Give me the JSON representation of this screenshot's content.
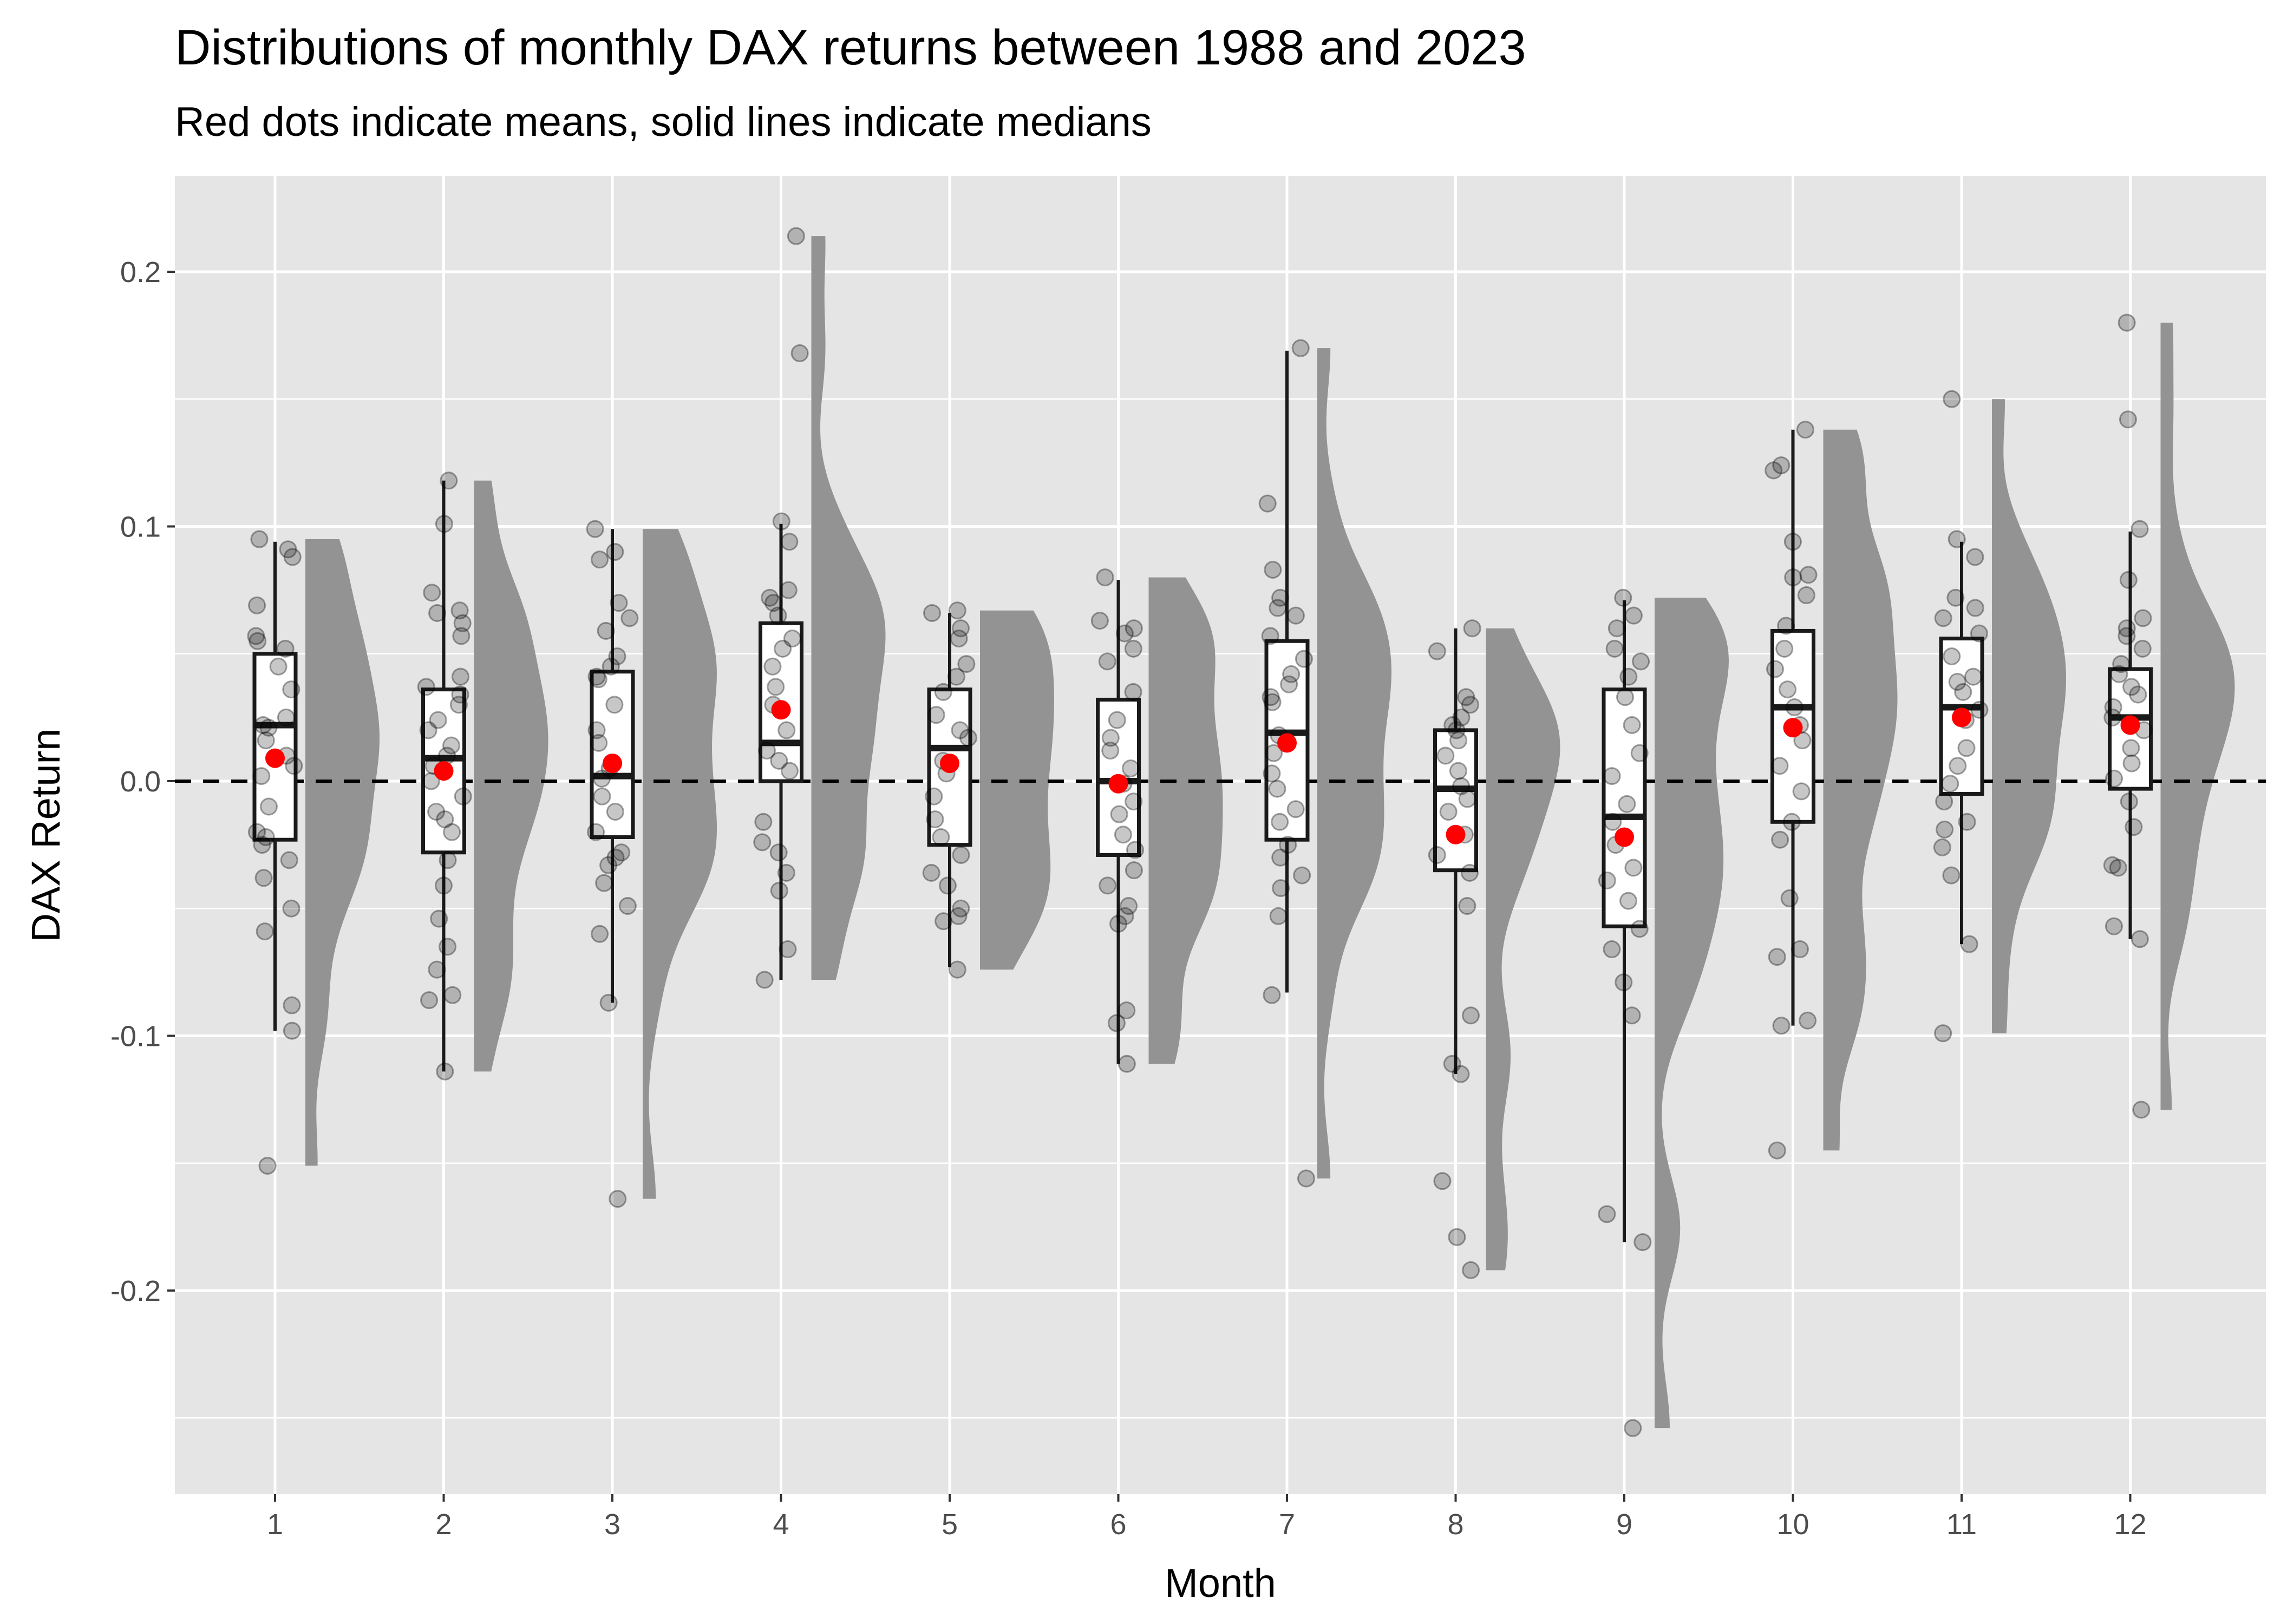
{
  "chart_data": {
    "type": "box",
    "title": "Distributions of monthly DAX returns between 1988 and 2023",
    "subtitle": "Red dots indicate means, solid lines indicate medians",
    "xlabel": "Month",
    "ylabel": "DAX Return",
    "ylim": [
      -0.28,
      0.235
    ],
    "yticks": [
      -0.2,
      -0.1,
      0.0,
      0.1,
      0.2
    ],
    "ytick_labels": [
      "-0.2",
      "-0.1",
      "0.0",
      "0.1",
      "0.2"
    ],
    "reference_line": 0,
    "grid": true,
    "colors": {
      "panel": "#e5e5e5",
      "grid": "#ffffff",
      "mean": "#ff0000",
      "violin": "#939393",
      "point": "#000000"
    },
    "categories": [
      "1",
      "2",
      "3",
      "4",
      "5",
      "6",
      "7",
      "8",
      "9",
      "10",
      "11",
      "12"
    ],
    "boxes": [
      {
        "month": "1",
        "whisker_low": -0.098,
        "q1": -0.023,
        "median": 0.022,
        "q3": 0.05,
        "whisker_high": 0.094,
        "mean": 0.009
      },
      {
        "month": "2",
        "whisker_low": -0.114,
        "q1": -0.028,
        "median": 0.009,
        "q3": 0.036,
        "whisker_high": 0.118,
        "mean": 0.004
      },
      {
        "month": "3",
        "whisker_low": -0.087,
        "q1": -0.022,
        "median": 0.002,
        "q3": 0.043,
        "whisker_high": 0.099,
        "mean": 0.007
      },
      {
        "month": "4",
        "whisker_low": -0.078,
        "q1": 0.0,
        "median": 0.015,
        "q3": 0.062,
        "whisker_high": 0.101,
        "mean": 0.028
      },
      {
        "month": "5",
        "whisker_low": -0.073,
        "q1": -0.025,
        "median": 0.013,
        "q3": 0.036,
        "whisker_high": 0.066,
        "mean": 0.007
      },
      {
        "month": "6",
        "whisker_low": -0.111,
        "q1": -0.029,
        "median": 0.0,
        "q3": 0.032,
        "whisker_high": 0.079,
        "mean": -0.001
      },
      {
        "month": "7",
        "whisker_low": -0.083,
        "q1": -0.023,
        "median": 0.019,
        "q3": 0.055,
        "whisker_high": 0.169,
        "mean": 0.015
      },
      {
        "month": "8",
        "whisker_low": -0.115,
        "q1": -0.035,
        "median": -0.003,
        "q3": 0.02,
        "whisker_high": 0.06,
        "mean": -0.021
      },
      {
        "month": "9",
        "whisker_low": -0.181,
        "q1": -0.057,
        "median": -0.014,
        "q3": 0.036,
        "whisker_high": 0.071,
        "mean": -0.022
      },
      {
        "month": "10",
        "whisker_low": -0.096,
        "q1": -0.016,
        "median": 0.029,
        "q3": 0.059,
        "whisker_high": 0.138,
        "mean": 0.021
      },
      {
        "month": "11",
        "whisker_low": -0.064,
        "q1": -0.005,
        "median": 0.029,
        "q3": 0.056,
        "whisker_high": 0.094,
        "mean": 0.025
      },
      {
        "month": "12",
        "whisker_low": -0.062,
        "q1": -0.003,
        "median": 0.025,
        "q3": 0.044,
        "whisker_high": 0.098,
        "mean": 0.022
      }
    ],
    "observations": {
      "1": [
        0.095,
        0.091,
        0.088,
        0.069,
        0.057,
        0.055,
        0.052,
        0.045,
        0.036,
        0.025,
        0.021,
        0.022,
        0.016,
        0.01,
        0.006,
        0.002,
        -0.01,
        -0.02,
        -0.022,
        -0.025,
        -0.031,
        -0.038,
        -0.05,
        -0.059,
        -0.088,
        -0.098,
        -0.151
      ],
      "2": [
        0.118,
        0.101,
        0.074,
        0.067,
        0.066,
        0.062,
        0.057,
        0.041,
        0.037,
        0.034,
        0.03,
        0.024,
        0.02,
        0.014,
        0.01,
        0.006,
        0.0,
        -0.006,
        -0.012,
        -0.015,
        -0.02,
        -0.031,
        -0.041,
        -0.054,
        -0.065,
        -0.074,
        -0.084,
        -0.086,
        -0.114
      ],
      "3": [
        0.099,
        0.09,
        0.087,
        0.07,
        0.064,
        0.059,
        0.049,
        0.045,
        0.041,
        0.04,
        0.03,
        0.02,
        0.015,
        0.005,
        0.001,
        -0.006,
        -0.012,
        -0.02,
        -0.028,
        -0.03,
        -0.033,
        -0.04,
        -0.049,
        -0.06,
        -0.087,
        -0.164
      ],
      "4": [
        0.214,
        0.168,
        0.102,
        0.094,
        0.075,
        0.072,
        0.07,
        0.065,
        0.056,
        0.052,
        0.045,
        0.037,
        0.03,
        0.02,
        0.012,
        0.008,
        0.004,
        -0.016,
        -0.024,
        -0.028,
        -0.036,
        -0.043,
        -0.066,
        -0.078
      ],
      "5": [
        0.067,
        0.066,
        0.06,
        0.056,
        0.046,
        0.041,
        0.035,
        0.026,
        0.02,
        0.017,
        0.008,
        0.003,
        -0.006,
        -0.015,
        -0.022,
        -0.029,
        -0.036,
        -0.041,
        -0.05,
        -0.053,
        -0.055,
        -0.074
      ],
      "6": [
        0.08,
        0.063,
        0.06,
        0.058,
        0.052,
        0.047,
        0.035,
        0.024,
        0.017,
        0.012,
        0.005,
        -0.001,
        -0.008,
        -0.013,
        -0.021,
        -0.027,
        -0.035,
        -0.041,
        -0.049,
        -0.053,
        -0.056,
        -0.09,
        -0.095,
        -0.111
      ],
      "7": [
        0.17,
        0.109,
        0.083,
        0.072,
        0.068,
        0.065,
        0.057,
        0.048,
        0.042,
        0.038,
        0.033,
        0.031,
        0.018,
        0.011,
        0.003,
        -0.003,
        -0.011,
        -0.016,
        -0.025,
        -0.03,
        -0.037,
        -0.042,
        -0.053,
        -0.084,
        -0.156
      ],
      "8": [
        0.06,
        0.051,
        0.033,
        0.03,
        0.025,
        0.022,
        0.02,
        0.016,
        0.01,
        0.004,
        -0.002,
        -0.007,
        -0.012,
        -0.021,
        -0.029,
        -0.036,
        -0.049,
        -0.092,
        -0.111,
        -0.115,
        -0.157,
        -0.179,
        -0.192
      ],
      "9": [
        0.072,
        0.065,
        0.06,
        0.052,
        0.047,
        0.041,
        0.033,
        0.022,
        0.011,
        0.002,
        -0.009,
        -0.016,
        -0.025,
        -0.034,
        -0.039,
        -0.047,
        -0.058,
        -0.066,
        -0.079,
        -0.092,
        -0.17,
        -0.181,
        -0.254
      ],
      "10": [
        0.138,
        0.124,
        0.122,
        0.094,
        0.081,
        0.08,
        0.073,
        0.061,
        0.052,
        0.044,
        0.036,
        0.029,
        0.022,
        0.016,
        0.006,
        -0.004,
        -0.016,
        -0.023,
        -0.046,
        -0.066,
        -0.069,
        -0.094,
        -0.096,
        -0.145
      ],
      "11": [
        0.15,
        0.095,
        0.088,
        0.072,
        0.068,
        0.064,
        0.058,
        0.049,
        0.041,
        0.039,
        0.035,
        0.028,
        0.024,
        0.013,
        0.006,
        -0.001,
        -0.008,
        -0.016,
        -0.019,
        -0.026,
        -0.037,
        -0.064,
        -0.099
      ],
      "12": [
        0.18,
        0.142,
        0.099,
        0.079,
        0.064,
        0.06,
        0.057,
        0.052,
        0.046,
        0.042,
        0.037,
        0.034,
        0.029,
        0.025,
        0.02,
        0.013,
        0.007,
        0.001,
        -0.008,
        -0.018,
        -0.033,
        -0.034,
        -0.057,
        -0.062,
        -0.129
      ]
    }
  }
}
